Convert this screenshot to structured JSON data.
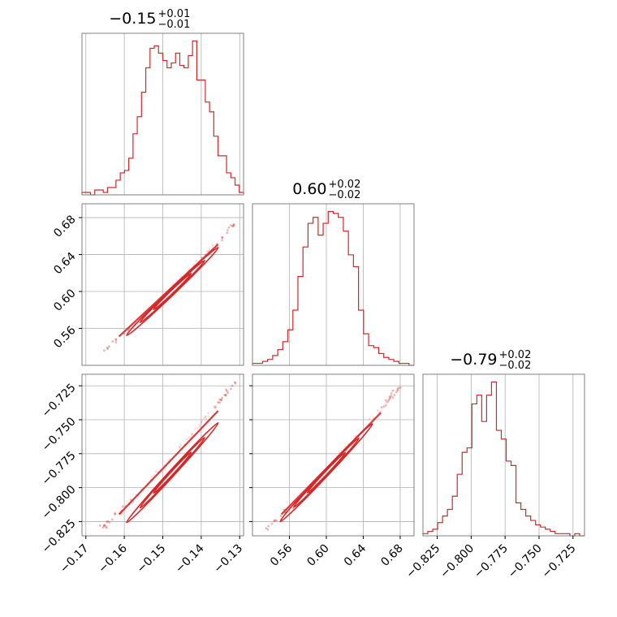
{
  "chart_data": {
    "type": "corner",
    "accent_color": "#d62728",
    "grid": true,
    "parameters": [
      {
        "title": {
          "value": "−0.15",
          "plus": "+0.01",
          "minus": "−0.01"
        },
        "range": [
          -0.171,
          -0.129
        ],
        "ticks": [
          -0.17,
          -0.16,
          -0.15,
          -0.14,
          -0.13
        ],
        "tick_labels": [
          "−0.17",
          "−0.16",
          "−0.15",
          "−0.14",
          "−0.13"
        ]
      },
      {
        "title": {
          "value": "0.60",
          "plus": "+0.02",
          "minus": "−0.02"
        },
        "range": [
          0.52,
          0.695
        ],
        "ticks": [
          0.56,
          0.6,
          0.64,
          0.68
        ],
        "tick_labels": [
          "0.56",
          "0.60",
          "0.64",
          "0.68"
        ]
      },
      {
        "title": {
          "value": "−0.79",
          "plus": "+0.02",
          "minus": "−0.02"
        },
        "range": [
          -0.8355,
          -0.7165
        ],
        "ticks": [
          -0.825,
          -0.8,
          -0.775,
          -0.75,
          -0.725
        ],
        "tick_labels": [
          "−0.825",
          "−0.800",
          "−0.775",
          "−0.750",
          "−0.725"
        ]
      }
    ],
    "histograms": [
      {
        "param": 0,
        "values": [
          1,
          1,
          0,
          2,
          2,
          1,
          3,
          3,
          6,
          9,
          10,
          15,
          25,
          32,
          42,
          52,
          60,
          61,
          58,
          55,
          52,
          54,
          58,
          53,
          52,
          57,
          63,
          47,
          47,
          38,
          34,
          24,
          16,
          16,
          9,
          7,
          4,
          1
        ]
      },
      {
        "param": 1,
        "values": [
          1,
          1,
          2,
          3,
          5,
          8,
          12,
          18,
          28,
          45,
          60,
          72,
          75,
          66,
          72,
          78,
          77,
          75,
          68,
          56,
          50,
          28,
          16,
          10,
          9,
          6,
          4,
          3,
          2,
          1,
          1,
          0
        ]
      },
      {
        "param": 2,
        "values": [
          1,
          2,
          3,
          6,
          9,
          12,
          18,
          28,
          38,
          40,
          60,
          64,
          52,
          64,
          70,
          48,
          44,
          34,
          32,
          15,
          12,
          9,
          7,
          5,
          4,
          3,
          2,
          1,
          1,
          1,
          0,
          1,
          0
        ]
      }
    ],
    "correlations": [
      {
        "x_param": 0,
        "y_param": 1,
        "center": [
          -0.1475,
          0.6
        ],
        "end_points": [
          [
            -0.166,
            0.535
          ],
          [
            -0.131,
            0.675
          ]
        ]
      },
      {
        "x_param": 0,
        "y_param": 2,
        "center": [
          -0.1475,
          -0.789
        ],
        "end_points": [
          [
            -0.166,
            -0.83
          ],
          [
            -0.131,
            -0.722
          ]
        ]
      },
      {
        "x_param": 1,
        "y_param": 2,
        "center": [
          0.6,
          -0.789
        ],
        "end_points": [
          [
            0.535,
            -0.83
          ],
          [
            0.682,
            -0.724
          ]
        ]
      }
    ]
  }
}
